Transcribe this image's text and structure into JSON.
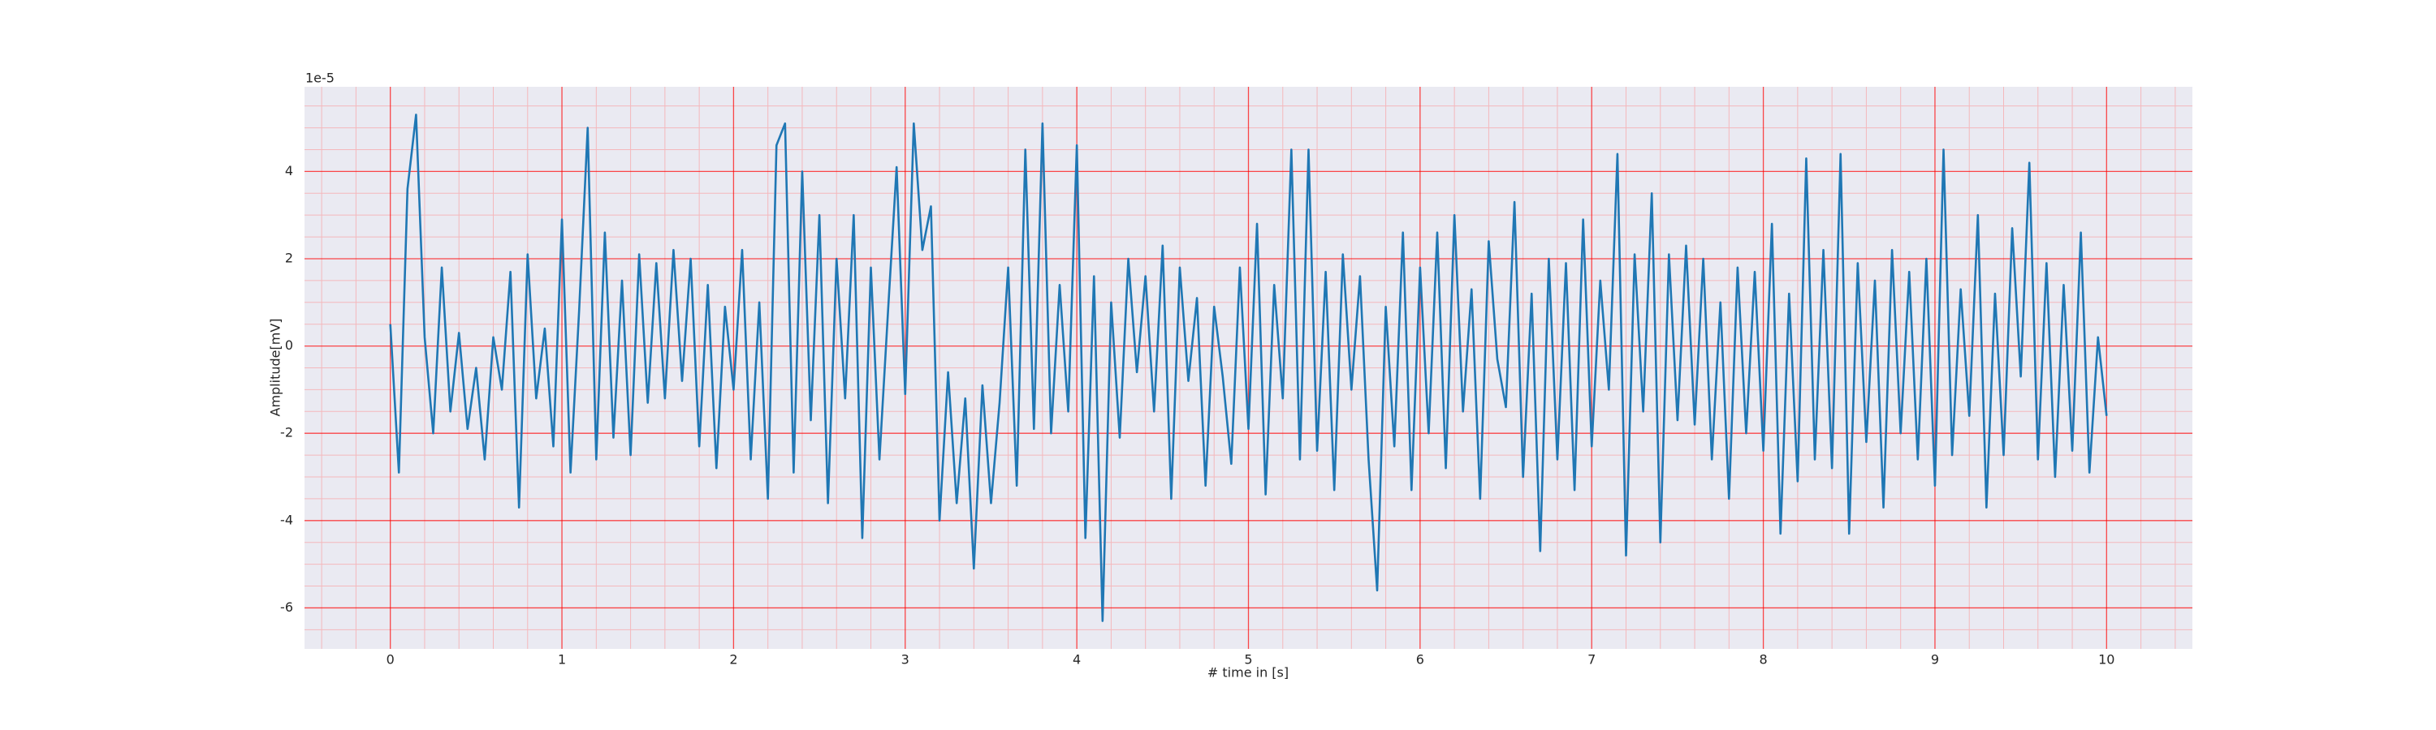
{
  "chart_data": {
    "type": "line",
    "xlabel": "# time in [s]",
    "ylabel": "Amplitude[mV]",
    "y_offset_label": "1e-5",
    "color": "#1f77b4",
    "grid": true,
    "grid_color": "#ff0000",
    "minor_grid_color": "#f4b8bc",
    "background": "#eaeaf2",
    "xlim": [
      -0.5,
      10.5
    ],
    "ylim": [
      -6.94,
      5.94
    ],
    "xticks": [
      0,
      1,
      2,
      3,
      4,
      5,
      6,
      7,
      8,
      9,
      10
    ],
    "yticks": [
      -6,
      -4,
      -2,
      0,
      2,
      4
    ],
    "xminorticks": [
      -0.4,
      -0.2,
      0.2,
      0.4,
      0.6,
      0.8,
      1.2,
      1.4,
      1.6,
      1.8,
      2.2,
      2.4,
      2.6,
      2.8,
      3.2,
      3.4,
      3.6,
      3.8,
      4.2,
      4.4,
      4.6,
      4.8,
      5.2,
      5.4,
      5.6,
      5.8,
      6.2,
      6.4,
      6.6,
      6.8,
      7.2,
      7.4,
      7.6,
      7.8,
      8.2,
      8.4,
      8.6,
      8.8,
      9.2,
      9.4,
      9.6,
      9.8,
      10.2,
      10.4
    ],
    "yminorticks": [
      -6.5,
      -5.5,
      -5,
      -4.5,
      -3.5,
      -3,
      -2.5,
      -1.5,
      -1,
      -0.5,
      0.5,
      1,
      1.5,
      2.5,
      3,
      3.5,
      4.5,
      5,
      5.5
    ],
    "x": [
      0,
      0.05,
      0.1,
      0.15,
      0.2,
      0.25,
      0.3,
      0.35,
      0.4,
      0.45,
      0.5,
      0.55,
      0.6,
      0.65,
      0.7,
      0.75,
      0.8,
      0.85,
      0.9,
      0.95,
      1,
      1.05,
      1.1,
      1.15,
      1.2,
      1.25,
      1.3,
      1.35,
      1.4,
      1.45,
      1.5,
      1.55,
      1.6,
      1.65,
      1.7,
      1.75,
      1.8,
      1.85,
      1.9,
      1.95,
      2,
      2.05,
      2.1,
      2.15,
      2.2,
      2.25,
      2.3,
      2.35,
      2.4,
      2.45,
      2.5,
      2.55,
      2.6,
      2.65,
      2.7,
      2.75,
      2.8,
      2.85,
      2.9,
      2.95,
      3,
      3.05,
      3.1,
      3.15,
      3.2,
      3.25,
      3.3,
      3.35,
      3.4,
      3.45,
      3.5,
      3.55,
      3.6,
      3.65,
      3.7,
      3.75,
      3.8,
      3.85,
      3.9,
      3.95,
      4,
      4.05,
      4.1,
      4.15,
      4.2,
      4.25,
      4.3,
      4.35,
      4.4,
      4.45,
      4.5,
      4.55,
      4.6,
      4.65,
      4.7,
      4.75,
      4.8,
      4.85,
      4.9,
      4.95,
      5,
      5.05,
      5.1,
      5.15,
      5.2,
      5.25,
      5.3,
      5.35,
      5.4,
      5.45,
      5.5,
      5.55,
      5.6,
      5.65,
      5.7,
      5.75,
      5.8,
      5.85,
      5.9,
      5.95,
      6,
      6.05,
      6.1,
      6.15,
      6.2,
      6.25,
      6.3,
      6.35,
      6.4,
      6.45,
      6.5,
      6.55,
      6.6,
      6.65,
      6.7,
      6.75,
      6.8,
      6.85,
      6.9,
      6.95,
      7,
      7.05,
      7.1,
      7.15,
      7.2,
      7.25,
      7.3,
      7.35,
      7.4,
      7.45,
      7.5,
      7.55,
      7.6,
      7.65,
      7.7,
      7.75,
      7.8,
      7.85,
      7.9,
      7.95,
      8,
      8.05,
      8.1,
      8.15,
      8.2,
      8.25,
      8.3,
      8.35,
      8.4,
      8.45,
      8.5,
      8.55,
      8.6,
      8.65,
      8.7,
      8.75,
      8.8,
      8.85,
      8.9,
      8.95,
      9,
      9.05,
      9.1,
      9.15,
      9.2,
      9.25,
      9.3,
      9.35,
      9.4,
      9.45,
      9.5,
      9.55,
      9.6,
      9.65,
      9.7,
      9.75,
      9.8,
      9.85,
      9.9,
      9.95,
      10
    ],
    "values": [
      0.5,
      -2.9,
      3.6,
      5.3,
      0.2,
      -2.0,
      1.8,
      -1.5,
      0.3,
      -1.9,
      -0.5,
      -2.6,
      0.2,
      -1.0,
      1.7,
      -3.7,
      2.1,
      -1.2,
      0.4,
      -2.3,
      2.9,
      -2.9,
      0.8,
      5.0,
      -2.6,
      2.6,
      -2.1,
      1.5,
      -2.5,
      2.1,
      -1.3,
      1.9,
      -1.2,
      2.2,
      -0.8,
      2.0,
      -2.3,
      1.4,
      -2.8,
      0.9,
      -1.0,
      2.2,
      -2.6,
      1.0,
      -3.5,
      4.6,
      5.1,
      -2.9,
      4.0,
      -1.7,
      3.0,
      -3.6,
      2.0,
      -1.2,
      3.0,
      -4.4,
      1.8,
      -2.6,
      0.8,
      4.1,
      -1.1,
      5.1,
      2.2,
      3.2,
      -4.0,
      -0.6,
      -3.6,
      -1.2,
      -5.1,
      -0.9,
      -3.6,
      -1.3,
      1.8,
      -3.2,
      4.5,
      -1.9,
      5.1,
      -2.0,
      1.4,
      -1.5,
      4.6,
      -4.4,
      1.6,
      -6.3,
      1.0,
      -2.1,
      2.0,
      -0.6,
      1.6,
      -1.5,
      2.3,
      -3.5,
      1.8,
      -0.8,
      1.1,
      -3.2,
      0.9,
      -0.7,
      -2.7,
      1.8,
      -1.9,
      2.8,
      -3.4,
      1.4,
      -1.2,
      4.5,
      -2.6,
      4.5,
      -2.4,
      1.7,
      -3.3,
      2.1,
      -1.0,
      1.6,
      -2.6,
      -5.6,
      0.9,
      -2.3,
      2.6,
      -3.3,
      1.8,
      -2.0,
      2.6,
      -2.8,
      3.0,
      -1.5,
      1.3,
      -3.5,
      2.4,
      -0.3,
      -1.4,
      3.3,
      -3.0,
      1.2,
      -4.7,
      2.0,
      -2.6,
      1.9,
      -3.3,
      2.9,
      -2.3,
      1.5,
      -1.0,
      4.4,
      -4.8,
      2.1,
      -1.5,
      3.5,
      -4.5,
      2.1,
      -1.7,
      2.3,
      -1.8,
      2.0,
      -2.6,
      1.0,
      -3.5,
      1.8,
      -2.0,
      1.7,
      -2.4,
      2.8,
      -4.3,
      1.2,
      -3.1,
      4.3,
      -2.6,
      2.2,
      -2.8,
      4.4,
      -4.3,
      1.9,
      -2.2,
      1.5,
      -3.7,
      2.2,
      -2.0,
      1.7,
      -2.6,
      2.0,
      -3.2,
      4.5,
      -2.5,
      1.3,
      -1.6,
      3.0,
      -3.7,
      1.2,
      -2.5,
      2.7,
      -0.7,
      4.2,
      -2.6,
      1.9,
      -3.0,
      1.4,
      -2.4,
      2.6,
      -2.9,
      0.2,
      -1.6
    ]
  }
}
